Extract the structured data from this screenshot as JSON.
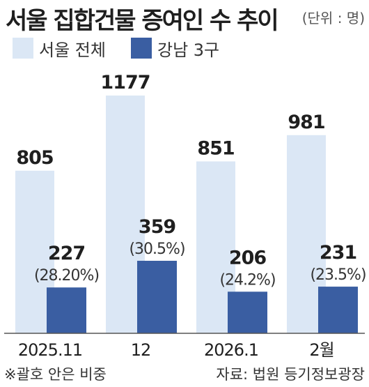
{
  "title": "서울 집합건물 증여인 수 추이",
  "unit": "(단위 : 명)",
  "footnote": "※괄호 안은 비중",
  "source": "자료: 법원 등기정보광장",
  "colors": {
    "total": "#dbe7f5",
    "gangnam": "#3a5ea2",
    "text": "#1f1f1f"
  },
  "chart_data": {
    "type": "bar",
    "categories": [
      "2025.11",
      "12",
      "2026.1",
      "2월"
    ],
    "series": [
      {
        "name": "서울 전체",
        "values": [
          805,
          1177,
          851,
          981
        ]
      },
      {
        "name": "강남 3구",
        "values": [
          227,
          359,
          206,
          231
        ],
        "share_labels": [
          "(28.20%)",
          "(30.5%)",
          "(24.2%)",
          "(23.5%)"
        ]
      }
    ],
    "ylim": [
      0,
      1250
    ],
    "legend": "top-left"
  }
}
